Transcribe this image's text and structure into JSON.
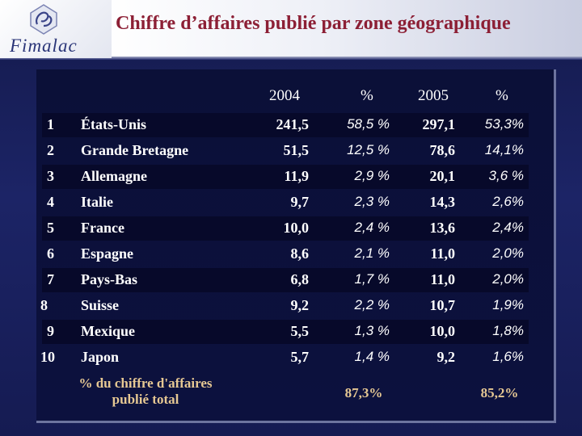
{
  "title": "Chiffre d’affaires publié par zone géographique",
  "logo": {
    "text": "Fimalac"
  },
  "columns": [
    "2004",
    "%",
    "2005",
    "%"
  ],
  "rows": [
    {
      "rank": "1",
      "country": "États-Unis",
      "v2004": "241,5",
      "p2004": "58,5 %",
      "v2005": "297,1",
      "p2005": "53,3%"
    },
    {
      "rank": "2",
      "country": "Grande Bretagne",
      "v2004": "51,5",
      "p2004": "12,5 %",
      "v2005": "78,6",
      "p2005": "14,1%"
    },
    {
      "rank": "3",
      "country": "Allemagne",
      "v2004": "11,9",
      "p2004": "2,9 %",
      "v2005": "20,1",
      "p2005": "3,6 %"
    },
    {
      "rank": "4",
      "country": "Italie",
      "v2004": "9,7",
      "p2004": "2,3 %",
      "v2005": "14,3",
      "p2005": "2,6%"
    },
    {
      "rank": "5",
      "country": "France",
      "v2004": "10,0",
      "p2004": "2,4 %",
      "v2005": "13,6",
      "p2005": "2,4%"
    },
    {
      "rank": "6",
      "country": "Espagne",
      "v2004": "8,6",
      "p2004": "2,1 %",
      "v2005": "11,0",
      "p2005": "2,0%"
    },
    {
      "rank": "7",
      "country": "Pays-Bas",
      "v2004": "6,8",
      "p2004": "1,7 %",
      "v2005": "11,0",
      "p2005": "2,0%"
    },
    {
      "rank": "8",
      "country": "Suisse",
      "v2004": "9,2",
      "p2004": "2,2 %",
      "v2005": "10,7",
      "p2005": "1,9%"
    },
    {
      "rank": "9",
      "country": "Mexique",
      "v2004": "5,5",
      "p2004": "1,3 %",
      "v2005": "10,0",
      "p2005": "1,8%"
    },
    {
      "rank": "10",
      "country": "Japon",
      "v2004": "5,7",
      "p2004": "1,4 %",
      "v2005": "9,2",
      "p2005": "1,6%"
    }
  ],
  "footer": {
    "label_line1": "% du chiffre d'affaires",
    "label_line2": "publié total",
    "total_2004": "87,3%",
    "total_2005": "85,2%"
  }
}
